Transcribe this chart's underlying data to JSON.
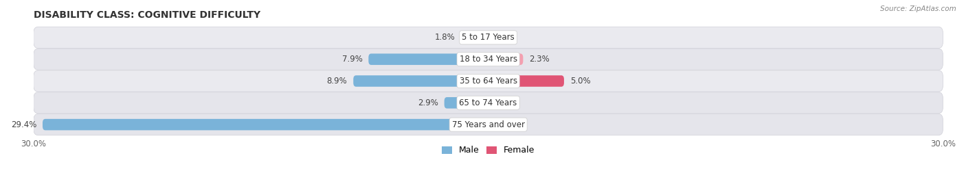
{
  "title": "DISABILITY CLASS: COGNITIVE DIFFICULTY",
  "source": "Source: ZipAtlas.com",
  "categories": [
    "5 to 17 Years",
    "18 to 34 Years",
    "35 to 64 Years",
    "65 to 74 Years",
    "75 Years and over"
  ],
  "male_values": [
    1.8,
    7.9,
    8.9,
    2.9,
    29.4
  ],
  "female_values": [
    0.0,
    2.3,
    5.0,
    0.0,
    0.0
  ],
  "xlim": 30.0,
  "male_color": "#7ab3d9",
  "female_color": "#f4a0b0",
  "female_color_dark": "#e05575",
  "row_bg_odd": "#e9e9ee",
  "row_bg_even": "#e4e4ea",
  "bar_height": 0.52,
  "label_fontsize": 8.5,
  "title_fontsize": 10,
  "axis_label_fontsize": 8.5,
  "legend_fontsize": 9,
  "value_fontsize": 8.5
}
